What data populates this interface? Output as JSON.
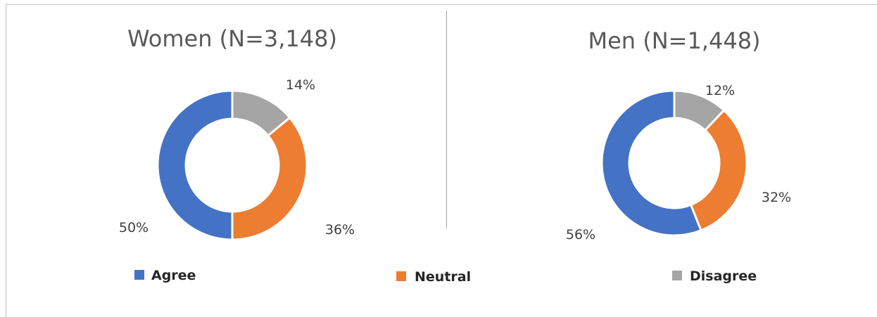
{
  "chart_data": [
    {
      "type": "pie",
      "variant": "donut",
      "title": "Women (N=3,148)",
      "categories": [
        "Agree",
        "Neutral",
        "Disagree"
      ],
      "values": [
        50,
        36,
        14
      ],
      "labels": [
        "50%",
        "36%",
        "14%"
      ]
    },
    {
      "type": "pie",
      "variant": "donut",
      "title": "Men (N=1,448)",
      "categories": [
        "Agree",
        "Neutral",
        "Disagree"
      ],
      "values": [
        56,
        32,
        12
      ],
      "labels": [
        "56%",
        "32%",
        "12%"
      ]
    }
  ],
  "legend": {
    "placement": "bottom",
    "items": [
      {
        "label": "Agree",
        "color": "#4472c4"
      },
      {
        "label": "Neutral",
        "color": "#ed7d31"
      },
      {
        "label": "Disagree",
        "color": "#a5a5a5"
      }
    ]
  },
  "colors": {
    "agree": "#4472c4",
    "neutral": "#ed7d31",
    "disagree": "#a5a5a5"
  }
}
